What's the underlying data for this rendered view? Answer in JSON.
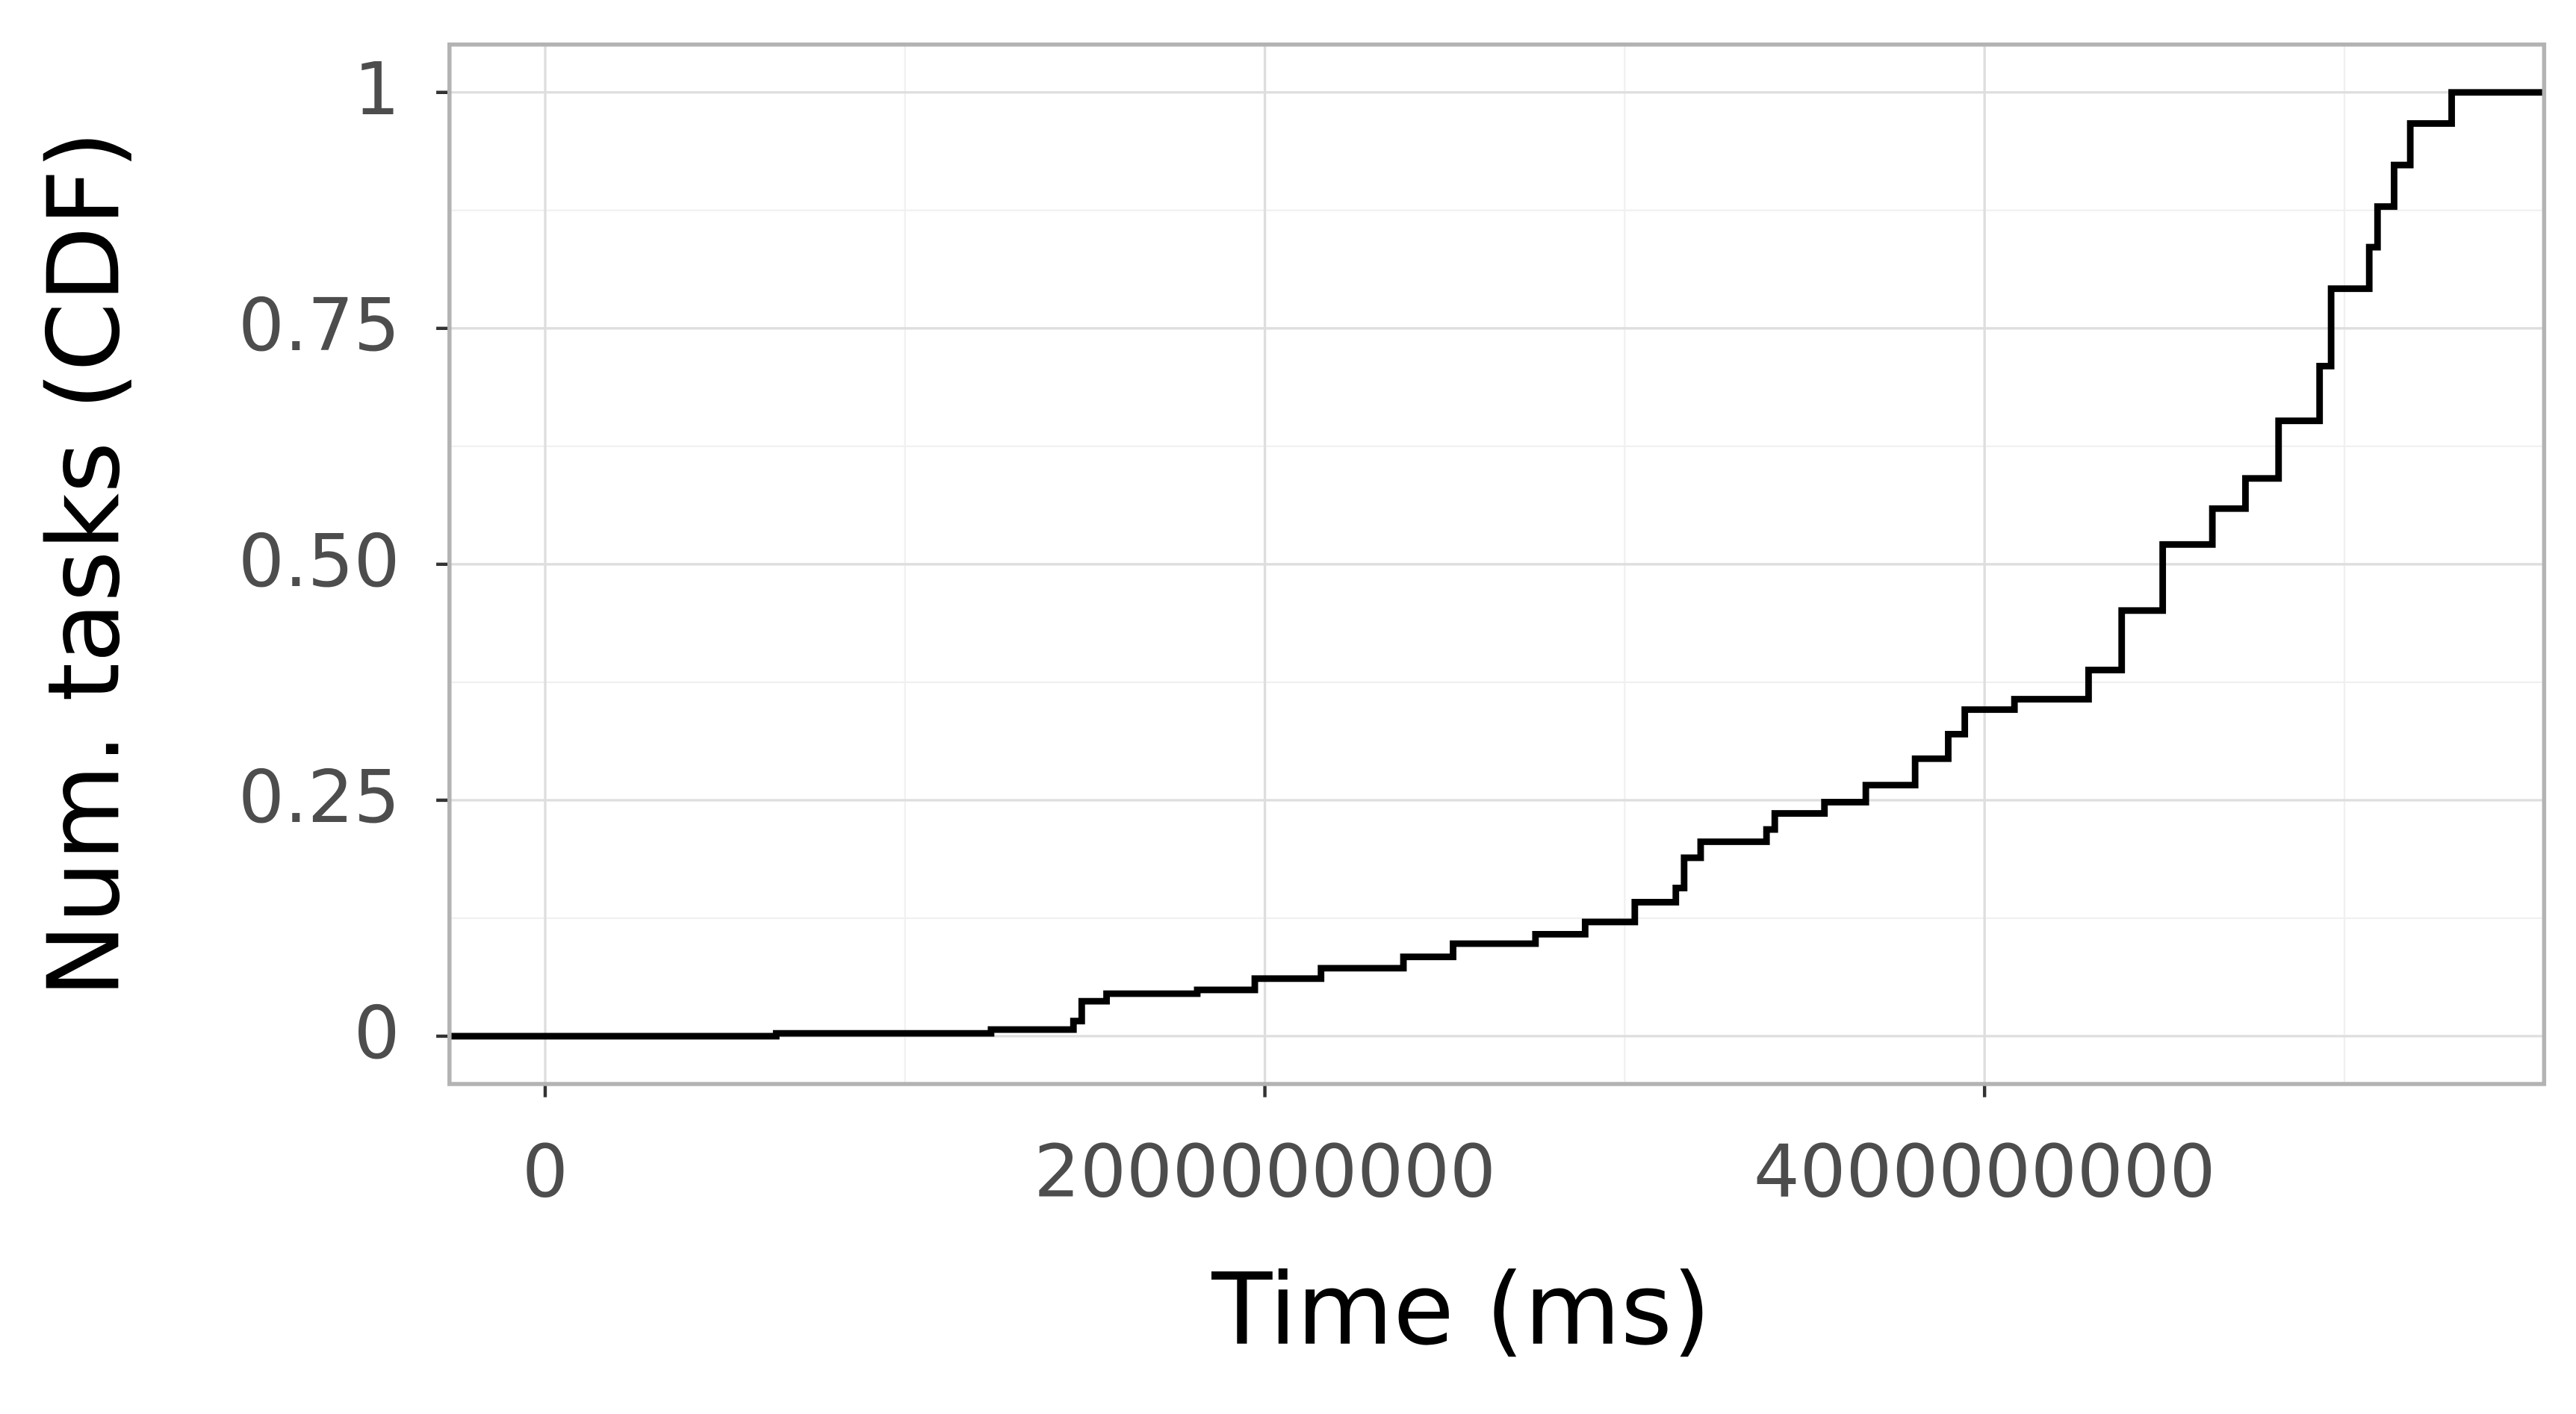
{
  "chart_data": {
    "type": "step",
    "x_label": "Time (ms)",
    "y_label": "Num. tasks (CDF)",
    "x": [
      -266000000,
      642000000,
      1239000000,
      1468000000,
      1491000000,
      1560000000,
      1812000000,
      1972000000,
      2156000000,
      2385000000,
      2523000000,
      2752000000,
      2890000000,
      3028000000,
      3142000000,
      3165000000,
      3211000000,
      3394000000,
      3417000000,
      3555000000,
      3670000000,
      3807000000,
      3899000000,
      3945000000,
      4083000000,
      4289000000,
      4381000000,
      4495000000,
      4633000000,
      4725000000,
      4817000000,
      4931000000,
      4963000000,
      5069000000,
      5092000000,
      5138000000,
      5183000000,
      5298000000,
      5555000000
    ],
    "series": [
      {
        "color": "#000000",
        "values": [
          0,
          0.003,
          0.007,
          0.016,
          0.037,
          0.045,
          0.049,
          0.061,
          0.072,
          0.084,
          0.098,
          0.108,
          0.121,
          0.142,
          0.157,
          0.189,
          0.206,
          0.219,
          0.236,
          0.248,
          0.266,
          0.294,
          0.32,
          0.346,
          0.357,
          0.388,
          0.451,
          0.521,
          0.559,
          0.591,
          0.652,
          0.71,
          0.792,
          0.836,
          0.879,
          0.923,
          0.967,
          1,
          1
        ]
      }
    ],
    "xlim": [
      -266000000,
      5555000000
    ],
    "ylim": [
      -0.0507,
      1.0507
    ],
    "xticks": [
      0,
      2000000000,
      4000000000
    ],
    "yticks": [
      0,
      0.25,
      {
        "value": 0.5,
        "label": "0.50"
      },
      0.75,
      1
    ],
    "grid": true
  }
}
